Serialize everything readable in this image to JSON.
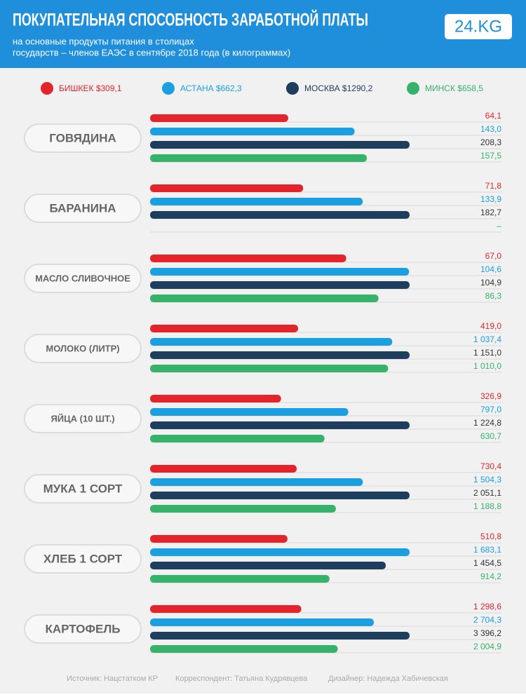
{
  "chart_data": {
    "type": "bar",
    "title": "ПОКУПАТЕЛЬНАЯ СПОСОБНОСТЬ ЗАРАБОТНОЙ ПЛАТЫ",
    "subtitle": [
      "на основные продукты питания в столицах",
      "государств – членов ЕАЭС в сентябре 2018 года (в килограммах)"
    ],
    "logo": "24.KG",
    "categories": [
      "ГОВЯДИНА",
      "БАРАНИНА",
      "МАСЛО СЛИВОЧНОЕ",
      "МОЛОКО (ЛИТР)",
      "ЯЙЦА (10 ШТ.)",
      "МУКА 1 СОРТ",
      "ХЛЕБ 1 СОРТ",
      "КАРТОФЕЛЬ"
    ],
    "series": [
      {
        "name": "БИШКЕК $309,1",
        "color": "#e3242b",
        "values": [
          64.1,
          71.8,
          67.0,
          419.0,
          326.9,
          730.4,
          510.8,
          1298.6
        ],
        "value_labels": [
          "64,1",
          "71,8",
          "67,0",
          "419,0",
          "326,9",
          "730,4",
          "510,8",
          "1 298,6"
        ]
      },
      {
        "name": "АСТАНА $662,3",
        "color": "#1a9fe0",
        "values": [
          143.0,
          133.9,
          104.6,
          1037.4,
          797.0,
          1504.3,
          1683.1,
          2704.3
        ],
        "value_labels": [
          "143,0",
          "133,9",
          "104,6",
          "1 037,4",
          "797,0",
          "1 504,3",
          "1 683,1",
          "2 704,3"
        ]
      },
      {
        "name": "МОСКВА $1290,2",
        "color": "#1d3e5c",
        "values": [
          208.3,
          182.7,
          104.9,
          1151.0,
          1224.8,
          2051.1,
          1454.5,
          3396.2
        ],
        "value_labels": [
          "208,3",
          "182,7",
          "104,9",
          "1 151,0",
          "1 224,8",
          "2 051,1",
          "1 454,5",
          "3 396,2"
        ]
      },
      {
        "name": "МИНСК $658,5",
        "color": "#37b26a",
        "values": [
          157.5,
          null,
          86.3,
          1010.0,
          630.7,
          1188.8,
          914.2,
          2004.9
        ],
        "value_labels": [
          "157,5",
          "–",
          "86,3",
          "1 010,0",
          "630,7",
          "1 188,8",
          "914,2",
          "2 004,9"
        ]
      }
    ]
  },
  "footer": [
    "Источник: Нацстатком КР",
    "Корреспондент: Татьяна Кудрявцева",
    "Дизайнер: Надежда Хабичевская"
  ]
}
